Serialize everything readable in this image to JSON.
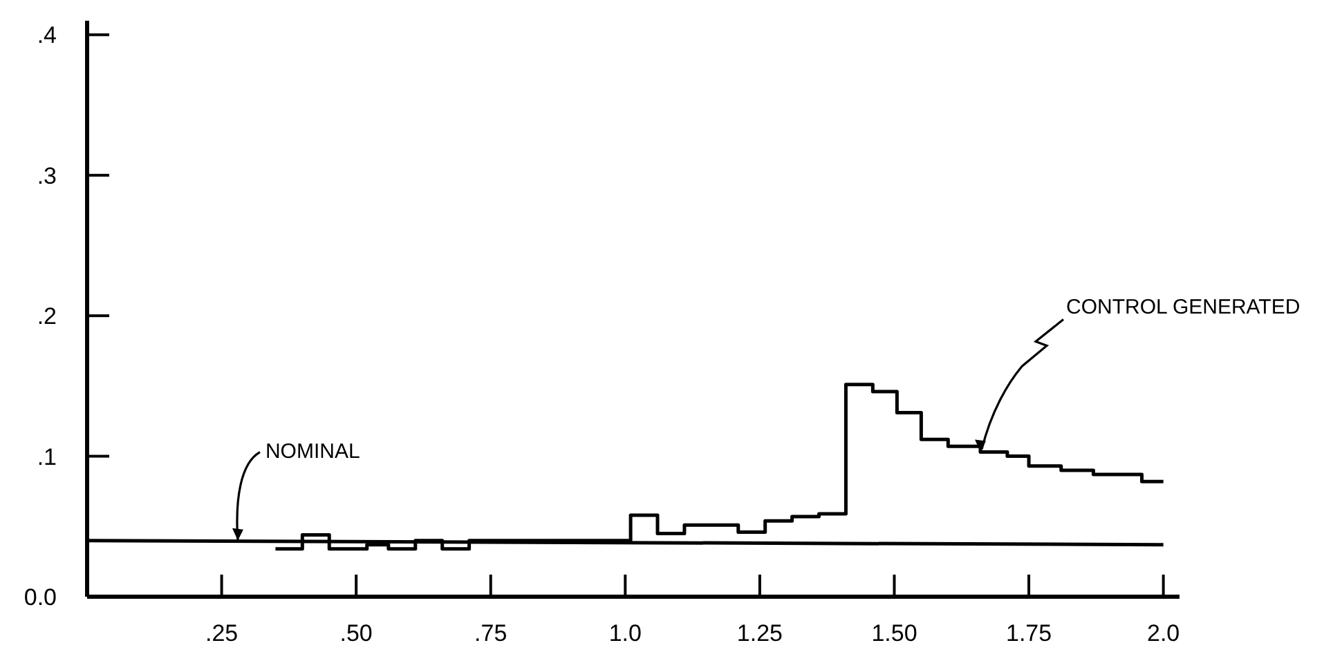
{
  "chart_data": {
    "type": "step",
    "xlim": [
      0,
      2.03
    ],
    "ylim": [
      0,
      0.41
    ],
    "xticks": [
      {
        "value": 0.25,
        "label": ".25"
      },
      {
        "value": 0.5,
        "label": ".50"
      },
      {
        "value": 0.75,
        "label": ".75"
      },
      {
        "value": 1.0,
        "label": "1.0"
      },
      1.25,
      {
        "value": 1.5,
        "label": "1.50"
      },
      1.75,
      {
        "value": 2.0,
        "label": "2.0"
      }
    ],
    "yticks": [
      {
        "value": 0,
        "label": "0.0"
      },
      {
        "value": 0.1,
        "label": ".1"
      },
      {
        "value": 0.2,
        "label": ".2"
      },
      {
        "value": 0.3,
        "label": ".3"
      },
      {
        "value": 0.4,
        "label": ".4"
      }
    ],
    "series": [
      {
        "type": "line",
        "color": "#000000",
        "x": [
          0,
          2.0
        ],
        "values": [
          0.04,
          0.037
        ]
      },
      {
        "type": "step",
        "color": "#000000",
        "x": [
          0.35,
          0.4,
          0.45,
          0.52,
          0.56,
          0.61,
          0.66,
          0.71,
          1.01,
          1.06,
          1.11,
          1.21,
          1.26,
          1.31,
          1.36,
          1.41,
          1.46,
          1.505,
          1.55,
          1.6,
          1.66,
          1.71,
          1.75,
          1.81,
          1.87,
          1.96,
          2.0
        ],
        "values": [
          0.034,
          0.044,
          0.034,
          0.037,
          0.034,
          0.04,
          0.034,
          0.04,
          0.058,
          0.045,
          0.051,
          0.046,
          0.054,
          0.057,
          0.059,
          0.151,
          0.146,
          0.131,
          0.112,
          0.107,
          0.103,
          0.1,
          0.093,
          0.09,
          0.087,
          0.082,
          0.082
        ]
      }
    ],
    "annotations": [
      {
        "text": "NOMINAL",
        "x": 0.28,
        "y": 0.04
      },
      {
        "text": "CONTROL GENERATED",
        "x": 1.66,
        "y": 0.103
      }
    ],
    "grid": false
  }
}
